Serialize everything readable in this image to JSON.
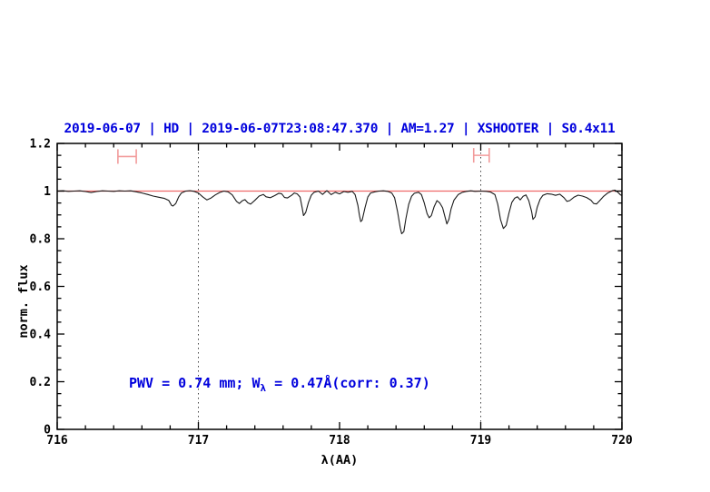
{
  "title": {
    "text": "2019-06-07 | HD | 2019-06-07T23:08:47.370 | AM=1.27 | XSHOOTER | S0.4x11",
    "color": "#0000dd"
  },
  "annotation": {
    "pre": "PWV = 0.74 mm; W",
    "sub": "λ",
    "post": " = 0.47Å(corr: 0.37)",
    "color": "#0000dd"
  },
  "chart_data": {
    "type": "line",
    "title": "2019-06-07 | HD | 2019-06-07T23:08:47.370 | AM=1.27 | XSHOOTER | S0.4x11",
    "xlabel": "λ(AA)",
    "ylabel": "norm. flux",
    "xlim": [
      716,
      720
    ],
    "ylim": [
      0,
      1.2
    ],
    "grid": false,
    "legend": "none",
    "x_ticks": {
      "values": [
        716,
        717,
        718,
        719,
        720
      ],
      "labels": [
        "716",
        "717",
        "718",
        "719",
        "720"
      ],
      "minor_step": 0.2
    },
    "y_ticks": {
      "values": [
        0,
        0.2,
        0.4,
        0.6,
        0.8,
        1,
        1.2
      ],
      "labels": [
        "0",
        "0.2",
        "0.4",
        "0.6",
        "0.8",
        "1",
        "1.2"
      ],
      "minor_step": 0.05
    },
    "vlines": {
      "x": [
        717,
        719
      ],
      "color": "#444444",
      "style": "dotted"
    },
    "reference_line": {
      "y": 1.0,
      "color": "#ee6a6a"
    },
    "range_markers": [
      {
        "x_min": 716.43,
        "x_max": 716.56,
        "y": 1.145,
        "color": "#f29b9b"
      },
      {
        "x_min": 718.95,
        "x_max": 719.06,
        "y": 1.15,
        "color": "#f29b9b"
      }
    ],
    "series": [
      {
        "name": "normalized telluric spectrum",
        "color": "#1a1a1a",
        "points": [
          [
            716.0,
            1.0
          ],
          [
            716.04,
            1.001
          ],
          [
            716.08,
            0.999
          ],
          [
            716.12,
            1.0
          ],
          [
            716.16,
            1.001
          ],
          [
            716.2,
            0.998
          ],
          [
            716.24,
            0.994
          ],
          [
            716.28,
            0.998
          ],
          [
            716.32,
            1.001
          ],
          [
            716.36,
            1.0
          ],
          [
            716.4,
            0.999
          ],
          [
            716.44,
            1.001
          ],
          [
            716.48,
            1.0
          ],
          [
            716.52,
            1.001
          ],
          [
            716.56,
            0.997
          ],
          [
            716.6,
            0.992
          ],
          [
            716.64,
            0.986
          ],
          [
            716.68,
            0.979
          ],
          [
            716.72,
            0.974
          ],
          [
            716.76,
            0.969
          ],
          [
            716.79,
            0.961
          ],
          [
            716.81,
            0.94
          ],
          [
            716.82,
            0.937
          ],
          [
            716.84,
            0.948
          ],
          [
            716.86,
            0.975
          ],
          [
            716.88,
            0.992
          ],
          [
            716.91,
            1.0
          ],
          [
            716.94,
            1.002
          ],
          [
            716.97,
            0.999
          ],
          [
            717.0,
            0.992
          ],
          [
            717.03,
            0.976
          ],
          [
            717.06,
            0.963
          ],
          [
            717.09,
            0.971
          ],
          [
            717.12,
            0.984
          ],
          [
            717.15,
            0.994
          ],
          [
            717.18,
            1.0
          ],
          [
            717.21,
            0.997
          ],
          [
            717.24,
            0.984
          ],
          [
            717.27,
            0.957
          ],
          [
            717.29,
            0.948
          ],
          [
            717.31,
            0.959
          ],
          [
            717.33,
            0.964
          ],
          [
            717.35,
            0.951
          ],
          [
            717.37,
            0.945
          ],
          [
            717.4,
            0.961
          ],
          [
            717.43,
            0.979
          ],
          [
            717.46,
            0.986
          ],
          [
            717.48,
            0.976
          ],
          [
            717.51,
            0.972
          ],
          [
            717.54,
            0.981
          ],
          [
            717.57,
            0.991
          ],
          [
            717.59,
            0.989
          ],
          [
            717.61,
            0.973
          ],
          [
            717.63,
            0.971
          ],
          [
            717.66,
            0.982
          ],
          [
            717.68,
            0.992
          ],
          [
            717.7,
            0.988
          ],
          [
            717.72,
            0.975
          ],
          [
            717.735,
            0.93
          ],
          [
            717.745,
            0.897
          ],
          [
            717.76,
            0.91
          ],
          [
            717.78,
            0.953
          ],
          [
            717.8,
            0.983
          ],
          [
            717.82,
            0.995
          ],
          [
            717.85,
            1.0
          ],
          [
            717.88,
            0.986
          ],
          [
            717.91,
            1.002
          ],
          [
            717.94,
            0.985
          ],
          [
            717.97,
            0.995
          ],
          [
            718.0,
            0.988
          ],
          [
            718.03,
            0.998
          ],
          [
            718.06,
            0.995
          ],
          [
            718.09,
            0.999
          ],
          [
            718.11,
            0.985
          ],
          [
            718.13,
            0.94
          ],
          [
            718.14,
            0.9
          ],
          [
            718.15,
            0.872
          ],
          [
            718.16,
            0.878
          ],
          [
            718.18,
            0.93
          ],
          [
            718.2,
            0.975
          ],
          [
            718.22,
            0.992
          ],
          [
            718.25,
            0.997
          ],
          [
            718.28,
            1.0
          ],
          [
            718.31,
            1.001
          ],
          [
            718.34,
            0.999
          ],
          [
            718.37,
            0.992
          ],
          [
            718.39,
            0.972
          ],
          [
            718.41,
            0.915
          ],
          [
            718.43,
            0.845
          ],
          [
            718.44,
            0.821
          ],
          [
            718.455,
            0.83
          ],
          [
            718.47,
            0.885
          ],
          [
            718.49,
            0.945
          ],
          [
            718.51,
            0.978
          ],
          [
            718.53,
            0.991
          ],
          [
            718.56,
            0.995
          ],
          [
            718.58,
            0.985
          ],
          [
            718.6,
            0.95
          ],
          [
            718.62,
            0.905
          ],
          [
            718.635,
            0.888
          ],
          [
            718.65,
            0.897
          ],
          [
            718.67,
            0.935
          ],
          [
            718.69,
            0.96
          ],
          [
            718.71,
            0.95
          ],
          [
            718.73,
            0.93
          ],
          [
            718.75,
            0.885
          ],
          [
            718.76,
            0.862
          ],
          [
            718.775,
            0.882
          ],
          [
            718.79,
            0.925
          ],
          [
            718.81,
            0.962
          ],
          [
            718.84,
            0.985
          ],
          [
            718.87,
            0.995
          ],
          [
            718.9,
            0.999
          ],
          [
            718.93,
            1.001
          ],
          [
            718.96,
            0.999
          ],
          [
            719.0,
            1.0
          ],
          [
            719.04,
            0.999
          ],
          [
            719.07,
            0.996
          ],
          [
            719.1,
            0.985
          ],
          [
            719.12,
            0.945
          ],
          [
            719.14,
            0.88
          ],
          [
            719.16,
            0.843
          ],
          [
            719.18,
            0.856
          ],
          [
            719.2,
            0.908
          ],
          [
            719.22,
            0.952
          ],
          [
            719.24,
            0.97
          ],
          [
            719.26,
            0.976
          ],
          [
            719.28,
            0.963
          ],
          [
            719.3,
            0.978
          ],
          [
            719.32,
            0.984
          ],
          [
            719.34,
            0.96
          ],
          [
            719.36,
            0.915
          ],
          [
            719.37,
            0.881
          ],
          [
            719.385,
            0.892
          ],
          [
            719.4,
            0.932
          ],
          [
            719.42,
            0.965
          ],
          [
            719.44,
            0.982
          ],
          [
            719.47,
            0.989
          ],
          [
            719.5,
            0.987
          ],
          [
            719.53,
            0.982
          ],
          [
            719.56,
            0.987
          ],
          [
            719.59,
            0.972
          ],
          [
            719.61,
            0.957
          ],
          [
            719.63,
            0.96
          ],
          [
            719.66,
            0.974
          ],
          [
            719.69,
            0.983
          ],
          [
            719.72,
            0.979
          ],
          [
            719.75,
            0.973
          ],
          [
            719.78,
            0.962
          ],
          [
            719.8,
            0.948
          ],
          [
            719.82,
            0.946
          ],
          [
            719.84,
            0.958
          ],
          [
            719.87,
            0.978
          ],
          [
            719.9,
            0.992
          ],
          [
            719.93,
            1.001
          ],
          [
            719.95,
            1.004
          ],
          [
            719.97,
            0.996
          ],
          [
            719.99,
            0.984
          ],
          [
            720.0,
            0.982
          ]
        ]
      }
    ]
  }
}
